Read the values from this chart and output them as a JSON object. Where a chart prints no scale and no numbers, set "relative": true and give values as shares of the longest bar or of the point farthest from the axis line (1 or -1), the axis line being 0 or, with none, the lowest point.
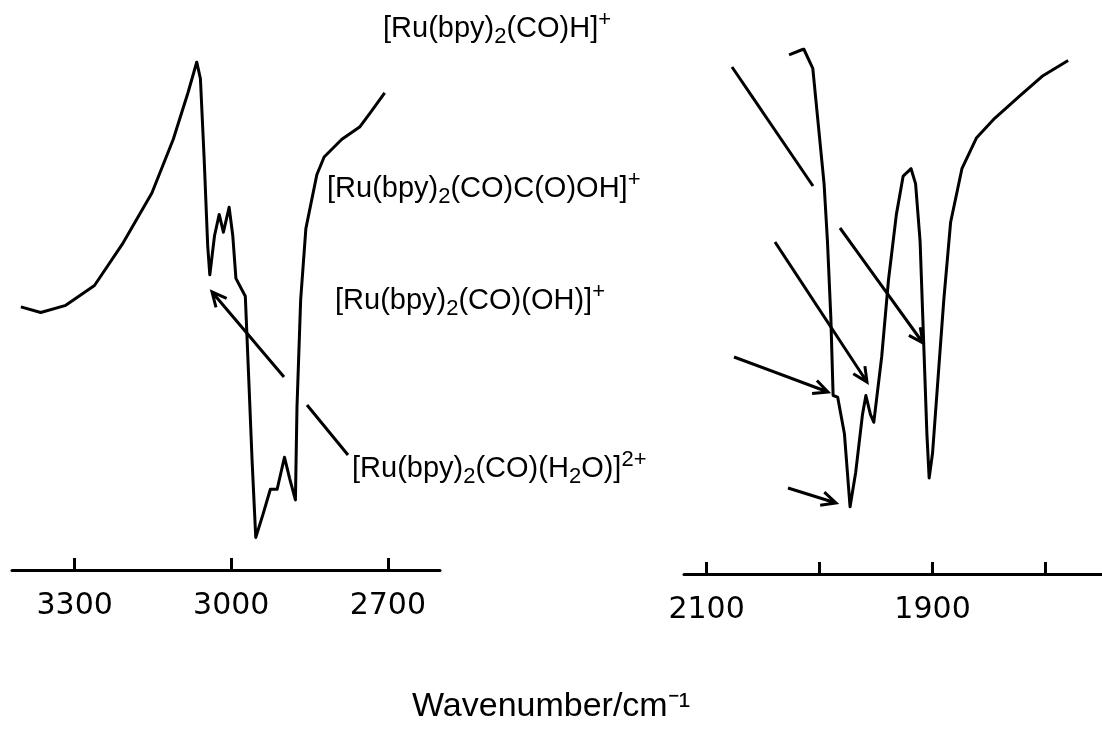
{
  "chart_data": [
    {
      "type": "line",
      "relative": true,
      "color": "#000000",
      "xlabel": "Wavenumber/cm⁻¹",
      "xlim": [
        3420,
        2600
      ],
      "xticks": [
        3300,
        3000,
        2700
      ],
      "x": [
        3403,
        3365,
        3317,
        3262,
        3207,
        3152,
        3111,
        3083,
        3066,
        3059,
        3052,
        3045,
        3041,
        3032,
        3023,
        3015,
        3004,
        2997,
        2991,
        2973,
        2967,
        2960,
        2953,
        2939,
        2925,
        2912,
        2898,
        2888,
        2877,
        2874,
        2867,
        2857,
        2836,
        2822,
        2788,
        2754,
        2733,
        2706
      ],
      "values": [
        0.518,
        0.507,
        0.521,
        0.56,
        0.644,
        0.742,
        0.848,
        0.939,
        1,
        0.967,
        0.813,
        0.637,
        0.581,
        0.658,
        0.7,
        0.665,
        0.714,
        0.658,
        0.574,
        0.539,
        0.391,
        0.215,
        0.064,
        0.11,
        0.159,
        0.159,
        0.222,
        0.18,
        0.138,
        0.321,
        0.531,
        0.672,
        0.778,
        0.813,
        0.848,
        0.872,
        0.901,
        0.939
      ]
    },
    {
      "type": "line",
      "relative": true,
      "color": "#000000",
      "xlim": [
        2120,
        1750
      ],
      "xticks": [
        2100,
        {
          "value": 2000,
          "label": null
        },
        1900,
        {
          "value": 1800,
          "label": null
        }
      ],
      "annotations": [
        "[Ru(bpy)$_{2}$(CO)H]$^{+}$",
        "[Ru(bpy)$_{2}$(CO)C(O)OH]$^{+}$",
        "[Ru(bpy)$_{2}$(CO)(OH)]$^{+}$",
        "[Ru(bpy)$_{2}$(CO)(H$_{2}$O)]$^{2+}$"
      ],
      "x": [
        2027,
        2014,
        2006,
        2001,
        1996,
        1993,
        1990,
        1988,
        1984,
        1978,
        1973,
        1968,
        1962,
        1959,
        1955,
        1952,
        1945,
        1939,
        1932,
        1926,
        1919,
        1915,
        1911,
        1908,
        1905,
        1903,
        1900,
        1895,
        1890,
        1884,
        1874,
        1861,
        1845,
        1822,
        1803,
        1780
      ],
      "values": [
        0.989,
        1,
        0.963,
        0.853,
        0.743,
        0.633,
        0.487,
        0.34,
        0.337,
        0.267,
        0.128,
        0.194,
        0.304,
        0.34,
        0.304,
        0.289,
        0.414,
        0.56,
        0.685,
        0.758,
        0.772,
        0.743,
        0.633,
        0.45,
        0.267,
        0.183,
        0.23,
        0.377,
        0.523,
        0.67,
        0.772,
        0.831,
        0.868,
        0.912,
        0.948,
        0.978
      ]
    }
  ]
}
